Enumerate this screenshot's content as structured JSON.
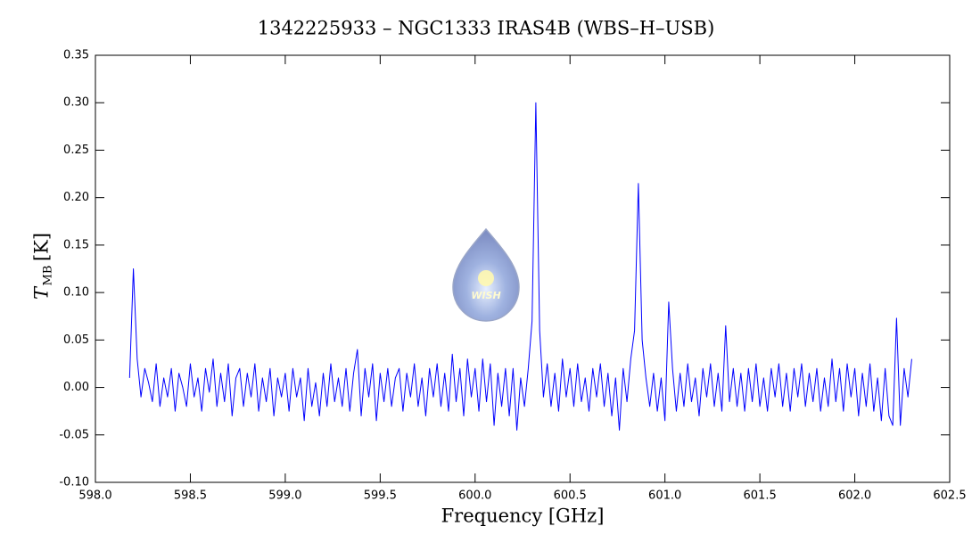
{
  "chart_data": {
    "type": "line",
    "title": "1342225933 – NGC1333 IRAS4B (WBS–H–USB)",
    "xlabel": "Frequency [GHz]",
    "ylabel": {
      "main": "T",
      "sub": "MB",
      "unit": "[K]"
    },
    "logo_text": "WISH",
    "xlim": [
      598.0,
      602.5
    ],
    "ylim": [
      -0.1,
      0.35
    ],
    "xticks": [
      {
        "value": 598,
        "label": "598.0"
      },
      598.5,
      {
        "value": 599,
        "label": "599.0"
      },
      599.5,
      {
        "value": 600,
        "label": "600.0"
      },
      600.5,
      {
        "value": 601,
        "label": "601.0"
      },
      601.5,
      {
        "value": 602,
        "label": "602.0"
      },
      602.5
    ],
    "yticks": [
      {
        "value": -0.1,
        "label": "-0.10"
      },
      {
        "value": -0.05,
        "label": "-0.05"
      },
      {
        "value": 0,
        "label": "0.00"
      },
      {
        "value": 0.05,
        "label": "0.05"
      },
      {
        "value": 0.1,
        "label": "0.10"
      },
      {
        "value": 0.15,
        "label": "0.15"
      },
      {
        "value": 0.2,
        "label": "0.20"
      },
      {
        "value": 0.25,
        "label": "0.25"
      },
      {
        "value": 0.3,
        "label": "0.30"
      },
      {
        "value": 0.35,
        "label": "0.35"
      }
    ],
    "x": [
      598.18,
      598.2,
      598.22,
      598.24,
      598.26,
      598.28,
      598.3,
      598.32,
      598.34,
      598.36,
      598.38,
      598.4,
      598.42,
      598.44,
      598.46,
      598.48,
      598.5,
      598.52,
      598.54,
      598.56,
      598.58,
      598.6,
      598.62,
      598.64,
      598.66,
      598.68,
      598.7,
      598.72,
      598.74,
      598.76,
      598.78,
      598.8,
      598.82,
      598.84,
      598.86,
      598.88,
      598.9,
      598.92,
      598.94,
      598.96,
      598.98,
      599,
      599.02,
      599.04,
      599.06,
      599.08,
      599.1,
      599.12,
      599.14,
      599.16,
      599.18,
      599.2,
      599.22,
      599.24,
      599.26,
      599.28,
      599.3,
      599.32,
      599.34,
      599.36,
      599.38,
      599.4,
      599.42,
      599.44,
      599.46,
      599.48,
      599.5,
      599.52,
      599.54,
      599.56,
      599.58,
      599.6,
      599.62,
      599.64,
      599.66,
      599.68,
      599.7,
      599.72,
      599.74,
      599.76,
      599.78,
      599.8,
      599.82,
      599.84,
      599.86,
      599.88,
      599.9,
      599.92,
      599.94,
      599.96,
      599.98,
      600,
      600.02,
      600.04,
      600.06,
      600.08,
      600.1,
      600.12,
      600.14,
      600.16,
      600.18,
      600.2,
      600.22,
      600.24,
      600.26,
      600.28,
      600.3,
      600.32,
      600.34,
      600.36,
      600.38,
      600.4,
      600.42,
      600.44,
      600.46,
      600.48,
      600.5,
      600.52,
      600.54,
      600.56,
      600.58,
      600.6,
      600.62,
      600.64,
      600.66,
      600.68,
      600.7,
      600.72,
      600.74,
      600.76,
      600.78,
      600.8,
      600.82,
      600.84,
      600.86,
      600.88,
      600.9,
      600.92,
      600.94,
      600.96,
      600.98,
      601,
      601.02,
      601.04,
      601.06,
      601.08,
      601.1,
      601.12,
      601.14,
      601.16,
      601.18,
      601.2,
      601.22,
      601.24,
      601.26,
      601.28,
      601.3,
      601.32,
      601.34,
      601.36,
      601.38,
      601.4,
      601.42,
      601.44,
      601.46,
      601.48,
      601.5,
      601.52,
      601.54,
      601.56,
      601.58,
      601.6,
      601.62,
      601.64,
      601.66,
      601.68,
      601.7,
      601.72,
      601.74,
      601.76,
      601.78,
      601.8,
      601.82,
      601.84,
      601.86,
      601.88,
      601.9,
      601.92,
      601.94,
      601.96,
      601.98,
      602,
      602.02,
      602.04,
      602.06,
      602.08,
      602.1,
      602.12,
      602.14,
      602.16,
      602.18,
      602.2,
      602.22,
      602.24,
      602.26,
      602.28,
      602.3
    ],
    "series": [
      {
        "name": "WBS-H-USB",
        "color": "#0000ff",
        "values": [
          0.01,
          0.125,
          0.03,
          -0.01,
          0.02,
          0.005,
          -0.015,
          0.025,
          -0.02,
          0.01,
          -0.01,
          0.02,
          -0.025,
          0.015,
          0.0,
          -0.02,
          0.025,
          -0.01,
          0.01,
          -0.025,
          0.02,
          -0.005,
          0.03,
          -0.02,
          0.015,
          -0.015,
          0.025,
          -0.03,
          0.01,
          0.02,
          -0.02,
          0.015,
          -0.01,
          0.025,
          -0.025,
          0.01,
          -0.015,
          0.02,
          -0.03,
          0.01,
          -0.01,
          0.015,
          -0.025,
          0.02,
          -0.01,
          0.01,
          -0.035,
          0.02,
          -0.02,
          0.005,
          -0.03,
          0.015,
          -0.02,
          0.025,
          -0.015,
          0.01,
          -0.02,
          0.02,
          -0.025,
          0.015,
          0.04,
          -0.03,
          0.02,
          -0.01,
          0.025,
          -0.035,
          0.015,
          -0.015,
          0.02,
          -0.02,
          0.01,
          0.02,
          -0.025,
          0.015,
          -0.01,
          0.025,
          -0.02,
          0.01,
          -0.03,
          0.02,
          -0.01,
          0.025,
          -0.02,
          0.015,
          -0.025,
          0.035,
          -0.015,
          0.02,
          -0.03,
          0.03,
          -0.01,
          0.02,
          -0.025,
          0.03,
          -0.015,
          0.025,
          -0.04,
          0.015,
          -0.02,
          0.02,
          -0.03,
          0.02,
          -0.045,
          0.01,
          -0.02,
          0.02,
          0.07,
          0.3,
          0.06,
          -0.01,
          0.025,
          -0.02,
          0.015,
          -0.025,
          0.03,
          -0.01,
          0.02,
          -0.02,
          0.025,
          -0.015,
          0.01,
          -0.025,
          0.02,
          -0.01,
          0.025,
          -0.02,
          0.015,
          -0.03,
          0.01,
          -0.045,
          0.02,
          -0.015,
          0.03,
          0.06,
          0.215,
          0.05,
          0.01,
          -0.02,
          0.015,
          -0.025,
          0.01,
          -0.035,
          0.09,
          0.02,
          -0.025,
          0.015,
          -0.02,
          0.025,
          -0.015,
          0.01,
          -0.03,
          0.02,
          -0.01,
          0.025,
          -0.02,
          0.015,
          -0.025,
          0.065,
          -0.015,
          0.02,
          -0.02,
          0.015,
          -0.025,
          0.02,
          -0.015,
          0.025,
          -0.02,
          0.01,
          -0.025,
          0.02,
          -0.01,
          0.025,
          -0.02,
          0.015,
          -0.025,
          0.02,
          -0.01,
          0.025,
          -0.02,
          0.015,
          -0.015,
          0.02,
          -0.025,
          0.01,
          -0.02,
          0.03,
          -0.015,
          0.02,
          -0.025,
          0.025,
          -0.01,
          0.02,
          -0.03,
          0.015,
          -0.02,
          0.025,
          -0.025,
          0.01,
          -0.035,
          0.02,
          -0.03,
          -0.04,
          0.073,
          -0.04,
          0.02,
          -0.01,
          0.03
        ]
      }
    ]
  }
}
